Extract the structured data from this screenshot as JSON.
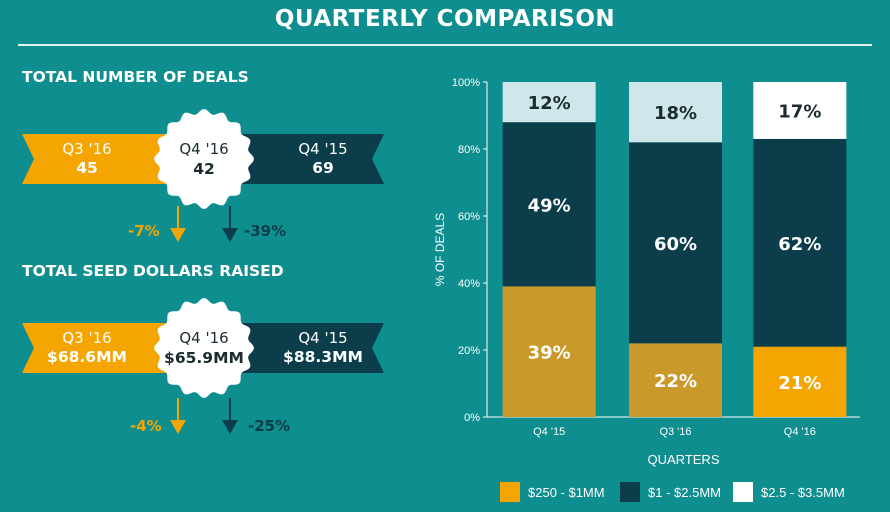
{
  "title": "QUARTERLY COMPARISON",
  "deals": {
    "label": "TOTAL NUMBER OF DEALS",
    "left": {
      "quarter": "Q3 '16",
      "value": "45"
    },
    "center": {
      "quarter": "Q4 '16",
      "value": "42"
    },
    "right": {
      "quarter": "Q4 '15",
      "value": "69"
    },
    "change_left": "-7%",
    "change_right": "-39%"
  },
  "seed": {
    "label": "TOTAL SEED DOLLARS RAISED",
    "left": {
      "quarter": "Q3 '16",
      "value": "$68.6MM"
    },
    "center": {
      "quarter": "Q4 '16",
      "value": "$65.9MM"
    },
    "right": {
      "quarter": "Q4 '15",
      "value": "$88.3MM"
    },
    "change_left": "-4%",
    "change_right": "-25%"
  },
  "colors": {
    "background": "#0e8e8e",
    "gold": "#c99a2a",
    "orange": "#f5a500",
    "dark": "#0b3d4a",
    "light": "#cfe7ea",
    "white": "#ffffff"
  },
  "chart_data": {
    "type": "bar",
    "stacked": true,
    "categories": [
      "Q4 '15",
      "Q3 '16",
      "Q4 '16"
    ],
    "series": [
      {
        "name": "$250 - $1MM",
        "values": [
          39,
          22,
          21
        ],
        "labels": [
          "39%",
          "22%",
          "21%"
        ]
      },
      {
        "name": "$1 - $2.5MM",
        "values": [
          49,
          60,
          62
        ],
        "labels": [
          "49%",
          "60%",
          "62%"
        ]
      },
      {
        "name": "$2.5 - $3.5MM",
        "values": [
          12,
          18,
          17
        ],
        "labels": [
          "12%",
          "18%",
          "17%"
        ]
      }
    ],
    "bottom_colors": [
      "#c99a2a",
      "#c99a2a",
      "#f5a500"
    ],
    "middle_color": "#0b3d4a",
    "top_colors": [
      "#cfe7ea",
      "#cfe7ea",
      "#ffffff"
    ],
    "legend_colors": [
      "#f5a500",
      "#0b3d4a",
      "#ffffff"
    ],
    "xlabel": "QUARTERS",
    "ylabel": "% OF DEALS",
    "ylim": [
      0,
      100
    ],
    "yticks": [
      "0%",
      "20%",
      "40%",
      "60%",
      "80%",
      "100%"
    ],
    "legend_position": "bottom"
  }
}
